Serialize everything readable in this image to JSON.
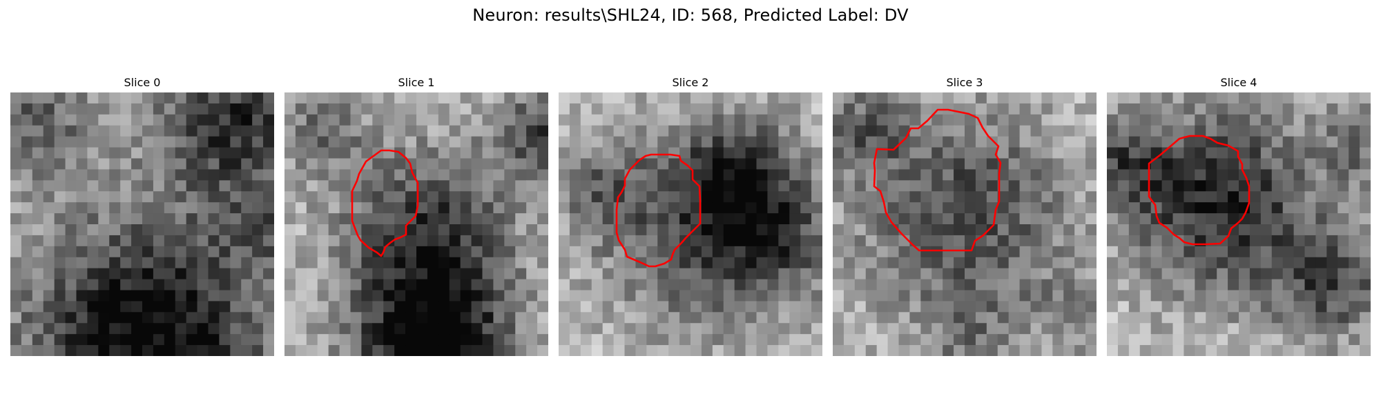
{
  "figure": {
    "title": "Neuron: results\\SHL24, ID: 568, Predicted Label: DV"
  },
  "contour_color": "#ff0000",
  "panels": [
    {
      "title": "Slice 0",
      "has_contour": false
    },
    {
      "title": "Slice 1",
      "has_contour": true
    },
    {
      "title": "Slice 2",
      "has_contour": true
    },
    {
      "title": "Slice 3",
      "has_contour": true
    },
    {
      "title": "Slice 4",
      "has_contour": true
    }
  ]
}
